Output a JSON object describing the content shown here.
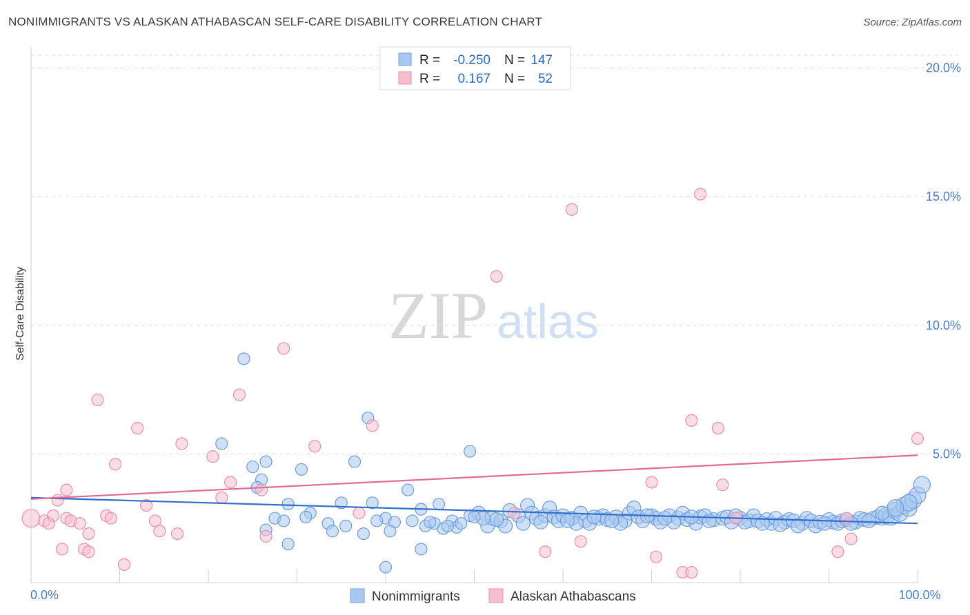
{
  "title": "NONIMMIGRANTS VS ALASKAN ATHABASCAN SELF-CARE DISABILITY CORRELATION CHART",
  "source": "Source: ZipAtlas.com",
  "watermark": {
    "zip": "ZIP",
    "atlas": "atlas"
  },
  "legend_top": [
    {
      "r_label": "R =",
      "r_value": "-0.250",
      "n_label": "N =",
      "n_value": "147"
    },
    {
      "r_label": "R =",
      "r_value": "0.167",
      "n_label": "N =",
      "n_value": "52"
    }
  ],
  "legend_bottom": [
    "Nonimmigrants",
    "Alaskan Athabascans"
  ],
  "chart_data": {
    "type": "scatter",
    "ylabel": "Self-Care Disability",
    "xlim": [
      0,
      100
    ],
    "ylim": [
      0,
      20.5
    ],
    "x_tick_labels": [
      {
        "value": 0,
        "label": "0.0%"
      },
      {
        "value": 100,
        "label": "100.0%"
      }
    ],
    "y_tick_labels": [
      {
        "value": 5,
        "label": "5.0%"
      },
      {
        "value": 10,
        "label": "10.0%"
      },
      {
        "value": 15,
        "label": "15.0%"
      },
      {
        "value": 20,
        "label": "20.0%"
      }
    ],
    "colors": {
      "blue_fill": "#a9c8f0",
      "blue_stroke": "#6d9ee0",
      "blue_line": "#2e6fcd",
      "pink_fill": "#f6bfd0",
      "pink_stroke": "#ea8fae",
      "pink_line": "#e06a96"
    },
    "series": [
      {
        "name": "Nonimmigrants",
        "trend": {
          "x": [
            0,
            100
          ],
          "y": [
            3.3,
            2.3
          ]
        },
        "points": [
          [
            24,
            8.7
          ],
          [
            38,
            6.4
          ],
          [
            21.5,
            5.4
          ],
          [
            49.5,
            5.1
          ],
          [
            36.5,
            4.7
          ],
          [
            26.5,
            4.7
          ],
          [
            25,
            4.5
          ],
          [
            30.5,
            4.4
          ],
          [
            26,
            4.0
          ],
          [
            25.5,
            3.7
          ],
          [
            42.5,
            3.6
          ],
          [
            35,
            3.1
          ],
          [
            38.5,
            3.1
          ],
          [
            29,
            3.05
          ],
          [
            46,
            3.05
          ],
          [
            44,
            2.85
          ],
          [
            31.5,
            2.7
          ],
          [
            27.5,
            2.5
          ],
          [
            28.5,
            2.4
          ],
          [
            31,
            2.55
          ],
          [
            33.5,
            2.3
          ],
          [
            35.5,
            2.2
          ],
          [
            37.5,
            1.9
          ],
          [
            34,
            2.0
          ],
          [
            26.5,
            2.05
          ],
          [
            29,
            1.5
          ],
          [
            40,
            2.5
          ],
          [
            41,
            2.35
          ],
          [
            39,
            2.4
          ],
          [
            43,
            2.4
          ],
          [
            44.5,
            2.2
          ],
          [
            45.5,
            2.3
          ],
          [
            46.5,
            2.1
          ],
          [
            47.5,
            2.4
          ],
          [
            48,
            2.15
          ],
          [
            48.5,
            2.3
          ],
          [
            49.5,
            2.6
          ],
          [
            50.5,
            2.7
          ],
          [
            51.5,
            2.2
          ],
          [
            52,
            2.5
          ],
          [
            53,
            2.4
          ],
          [
            54,
            2.8
          ],
          [
            55,
            2.6
          ],
          [
            56,
            3.0
          ],
          [
            56.5,
            2.7
          ],
          [
            57,
            2.5
          ],
          [
            58,
            2.6
          ],
          [
            58.5,
            2.9
          ],
          [
            59,
            2.55
          ],
          [
            59.5,
            2.4
          ],
          [
            60,
            2.6
          ],
          [
            61,
            2.5
          ],
          [
            62,
            2.7
          ],
          [
            62.5,
            2.4
          ],
          [
            63,
            2.3
          ],
          [
            64,
            2.5
          ],
          [
            64.5,
            2.6
          ],
          [
            65,
            2.45
          ],
          [
            66,
            2.55
          ],
          [
            67,
            2.4
          ],
          [
            67.5,
            2.7
          ],
          [
            68,
            2.9
          ],
          [
            68.5,
            2.55
          ],
          [
            69,
            2.4
          ],
          [
            70,
            2.6
          ],
          [
            70.5,
            2.5
          ],
          [
            71,
            2.35
          ],
          [
            72,
            2.6
          ],
          [
            73,
            2.5
          ],
          [
            73.5,
            2.7
          ],
          [
            74,
            2.45
          ],
          [
            75,
            2.3
          ],
          [
            75.5,
            2.55
          ],
          [
            76,
            2.6
          ],
          [
            77,
            2.45
          ],
          [
            78,
            2.5
          ],
          [
            78.5,
            2.55
          ],
          [
            79,
            2.35
          ],
          [
            80,
            2.5
          ],
          [
            81,
            2.4
          ],
          [
            81.5,
            2.6
          ],
          [
            82,
            2.4
          ],
          [
            83,
            2.45
          ],
          [
            83.5,
            2.3
          ],
          [
            84,
            2.5
          ],
          [
            85,
            2.35
          ],
          [
            85.5,
            2.45
          ],
          [
            86,
            2.4
          ],
          [
            87,
            2.3
          ],
          [
            87.5,
            2.5
          ],
          [
            88,
            2.4
          ],
          [
            88.5,
            2.2
          ],
          [
            89,
            2.35
          ],
          [
            90,
            2.45
          ],
          [
            90.5,
            2.35
          ],
          [
            91,
            2.3
          ],
          [
            91.5,
            2.4
          ],
          [
            92,
            2.45
          ],
          [
            93,
            2.35
          ],
          [
            93.5,
            2.5
          ],
          [
            94,
            2.45
          ],
          [
            95,
            2.5
          ],
          [
            95.5,
            2.55
          ],
          [
            96,
            2.5
          ],
          [
            96.5,
            2.6
          ],
          [
            97,
            2.55
          ],
          [
            97.5,
            2.8
          ],
          [
            98,
            2.7
          ],
          [
            98.5,
            3.0
          ],
          [
            99,
            2.9
          ],
          [
            99.5,
            3.2
          ],
          [
            100,
            3.4
          ],
          [
            100.5,
            3.8
          ],
          [
            99,
            3.1
          ],
          [
            97.5,
            2.9
          ],
          [
            96,
            2.7
          ],
          [
            94.5,
            2.4
          ],
          [
            92.5,
            2.3
          ],
          [
            89.5,
            2.3
          ],
          [
            86.5,
            2.2
          ],
          [
            84.5,
            2.25
          ],
          [
            82.5,
            2.3
          ],
          [
            80.5,
            2.35
          ],
          [
            79.5,
            2.6
          ],
          [
            76.5,
            2.4
          ],
          [
            74.5,
            2.55
          ],
          [
            72.5,
            2.35
          ],
          [
            71.5,
            2.5
          ],
          [
            69.5,
            2.6
          ],
          [
            66.5,
            2.3
          ],
          [
            65.5,
            2.4
          ],
          [
            63.5,
            2.55
          ],
          [
            61.5,
            2.3
          ],
          [
            60.5,
            2.4
          ],
          [
            57.5,
            2.35
          ],
          [
            55.5,
            2.3
          ],
          [
            53.5,
            2.2
          ],
          [
            52.5,
            2.45
          ],
          [
            51,
            2.5
          ],
          [
            50,
            2.55
          ],
          [
            47,
            2.2
          ],
          [
            45,
            2.35
          ],
          [
            44,
            1.3
          ],
          [
            40.5,
            2.0
          ],
          [
            40,
            0.6
          ]
        ]
      },
      {
        "name": "Alaskan Athabascans",
        "trend": {
          "x": [
            0,
            100
          ],
          "y": [
            3.25,
            4.95
          ]
        },
        "points": [
          [
            0,
            2.5
          ],
          [
            1.5,
            2.4
          ],
          [
            2.5,
            2.6
          ],
          [
            2,
            2.3
          ],
          [
            3,
            3.2
          ],
          [
            4,
            3.6
          ],
          [
            4,
            2.5
          ],
          [
            4.5,
            2.4
          ],
          [
            3.5,
            1.3
          ],
          [
            6,
            1.3
          ],
          [
            6.5,
            1.2
          ],
          [
            6.5,
            1.9
          ],
          [
            7.5,
            7.1
          ],
          [
            8.5,
            2.6
          ],
          [
            9,
            2.5
          ],
          [
            9.5,
            4.6
          ],
          [
            10.5,
            0.7
          ],
          [
            12,
            6.0
          ],
          [
            14,
            2.4
          ],
          [
            14.5,
            2.0
          ],
          [
            16.5,
            1.9
          ],
          [
            17,
            5.4
          ],
          [
            20.5,
            4.9
          ],
          [
            21.5,
            3.3
          ],
          [
            22.5,
            3.9
          ],
          [
            23.5,
            7.3
          ],
          [
            26,
            3.6
          ],
          [
            26.5,
            1.8
          ],
          [
            28.5,
            9.1
          ],
          [
            32,
            5.3
          ],
          [
            37,
            2.7
          ],
          [
            38.5,
            6.1
          ],
          [
            52.5,
            11.9
          ],
          [
            54.5,
            2.7
          ],
          [
            58,
            1.2
          ],
          [
            61,
            14.5
          ],
          [
            62,
            1.6
          ],
          [
            70,
            3.9
          ],
          [
            70.5,
            1.0
          ],
          [
            73.5,
            0.4
          ],
          [
            74.5,
            0.4
          ],
          [
            74.5,
            6.3
          ],
          [
            75.5,
            15.1
          ],
          [
            77.5,
            6.0
          ],
          [
            78,
            3.8
          ],
          [
            79.5,
            2.5
          ],
          [
            91,
            1.2
          ],
          [
            92,
            2.5
          ],
          [
            92.5,
            1.7
          ],
          [
            100,
            5.6
          ],
          [
            13,
            3.0
          ],
          [
            5.5,
            2.3
          ]
        ]
      }
    ]
  }
}
